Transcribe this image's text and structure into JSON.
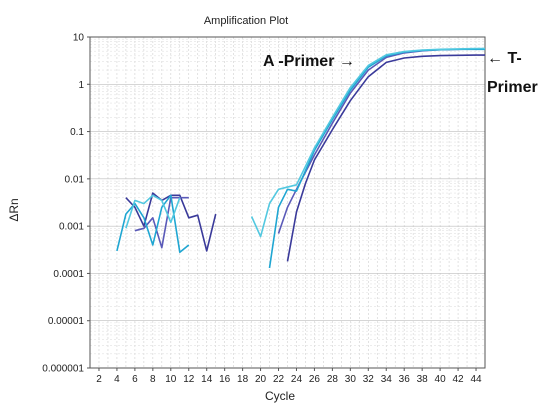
{
  "chart_data": {
    "type": "line",
    "title": "Amplification Plot",
    "xlabel": "Cycle",
    "ylabel": "ΔRn",
    "xlim": [
      1,
      45
    ],
    "ylim": [
      1e-06,
      10
    ],
    "yscale": "log",
    "grid": true,
    "x_ticks": [
      "2",
      "4",
      "6",
      "8",
      "10",
      "12",
      "14",
      "16",
      "18",
      "20",
      "22",
      "24",
      "26",
      "28",
      "30",
      "32",
      "34",
      "36",
      "38",
      "40",
      "42",
      "44"
    ],
    "y_ticks": [
      "0.000001",
      "0.00001",
      "0.0001",
      "0.001",
      "0.01",
      "0.1",
      "1",
      "10"
    ],
    "series": [
      {
        "color": "#3a3a9a",
        "segments": [
          [
            [
              5,
              0.004
            ],
            [
              6,
              0.0025
            ],
            [
              7,
              0.001
            ],
            [
              8,
              0.005
            ],
            [
              9,
              0.0035
            ],
            [
              10,
              0.0045
            ],
            [
              11,
              0.0045
            ],
            [
              12,
              0.0015
            ],
            [
              13,
              0.0017
            ],
            [
              14,
              0.0003
            ],
            [
              15,
              0.0018
            ]
          ],
          [
            [
              23,
              0.00018
            ],
            [
              24,
              0.002
            ],
            [
              25,
              0.008
            ],
            [
              26,
              0.025
            ],
            [
              28,
              0.11
            ],
            [
              30,
              0.45
            ],
            [
              32,
              1.45
            ],
            [
              34,
              2.9
            ],
            [
              36,
              3.6
            ],
            [
              38,
              3.9
            ],
            [
              40,
              4.05
            ],
            [
              42,
              4.1
            ],
            [
              44,
              4.15
            ],
            [
              45,
              4.15
            ]
          ]
        ]
      },
      {
        "color": "#5a5ab8",
        "segments": [
          [
            [
              6,
              0.0008
            ],
            [
              7,
              0.0009
            ],
            [
              8,
              0.0015
            ],
            [
              9,
              0.00035
            ],
            [
              10,
              0.004
            ],
            [
              11,
              0.004
            ],
            [
              12,
              0.004
            ]
          ],
          [
            [
              22,
              0.0007
            ],
            [
              23,
              0.0025
            ],
            [
              24,
              0.006
            ],
            [
              26,
              0.032
            ],
            [
              28,
              0.15
            ],
            [
              30,
              0.65
            ],
            [
              32,
              2.0
            ],
            [
              34,
              3.7
            ],
            [
              36,
              4.6
            ],
            [
              38,
              5.1
            ],
            [
              40,
              5.4
            ],
            [
              42,
              5.5
            ],
            [
              44,
              5.6
            ],
            [
              45,
              5.6
            ]
          ]
        ]
      },
      {
        "color": "#1fa6d2",
        "segments": [
          [
            [
              4,
              0.0003
            ],
            [
              5,
              0.0018
            ],
            [
              6,
              0.003
            ],
            [
              7,
              0.0015
            ],
            [
              8,
              0.0004
            ],
            [
              9,
              0.0025
            ],
            [
              10,
              0.0045
            ],
            [
              11,
              0.00028
            ],
            [
              12,
              0.0004
            ]
          ],
          [
            [
              21,
              0.00013
            ],
            [
              22,
              0.0025
            ],
            [
              23,
              0.006
            ],
            [
              24,
              0.0055
            ],
            [
              26,
              0.04
            ],
            [
              28,
              0.18
            ],
            [
              30,
              0.75
            ],
            [
              32,
              2.3
            ],
            [
              34,
              4.0
            ],
            [
              36,
              4.8
            ],
            [
              38,
              5.2
            ],
            [
              40,
              5.4
            ],
            [
              42,
              5.5
            ],
            [
              44,
              5.5
            ],
            [
              45,
              5.5
            ]
          ]
        ]
      },
      {
        "color": "#52c8e0",
        "segments": [
          [
            [
              5,
              0.0009
            ],
            [
              6,
              0.0035
            ],
            [
              7,
              0.003
            ],
            [
              8,
              0.0045
            ],
            [
              9,
              0.0035
            ],
            [
              10,
              0.0012
            ],
            [
              11,
              0.004
            ]
          ],
          [
            [
              19,
              0.0016
            ],
            [
              20,
              0.0006
            ],
            [
              21,
              0.003
            ],
            [
              22,
              0.006
            ],
            [
              24,
              0.0075
            ],
            [
              26,
              0.045
            ],
            [
              28,
              0.2
            ],
            [
              30,
              0.85
            ],
            [
              32,
              2.5
            ],
            [
              34,
              4.2
            ],
            [
              36,
              4.9
            ],
            [
              38,
              5.3
            ],
            [
              40,
              5.5
            ],
            [
              42,
              5.6
            ],
            [
              44,
              5.7
            ],
            [
              45,
              5.7
            ]
          ]
        ]
      }
    ],
    "annotations": [
      {
        "text": "A -Primer →"
      },
      {
        "text": "← T-"
      },
      {
        "text": "Primer"
      }
    ]
  }
}
